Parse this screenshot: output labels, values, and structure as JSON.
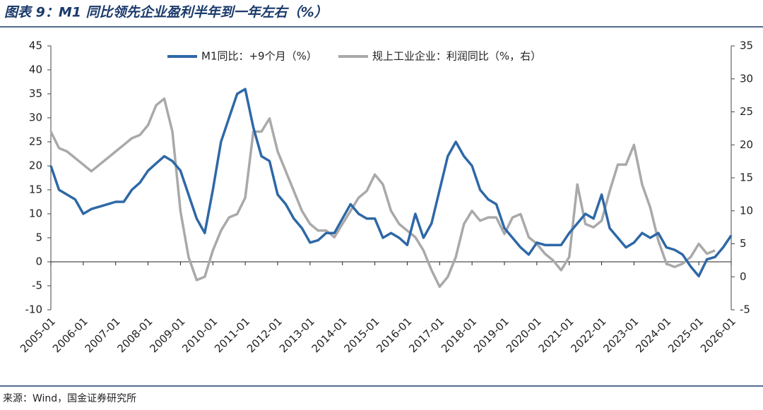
{
  "chart_data": {
    "type": "line",
    "title": "图表 9：M1 同比领先企业盈利半年到一年左右（%）",
    "source": "来源：Wind，国金证券研究所",
    "x": [
      "2005-01",
      "2005-04",
      "2005-07",
      "2005-10",
      "2006-01",
      "2006-04",
      "2006-07",
      "2006-10",
      "2007-01",
      "2007-04",
      "2007-07",
      "2007-10",
      "2008-01",
      "2008-04",
      "2008-07",
      "2008-10",
      "2009-01",
      "2009-04",
      "2009-07",
      "2009-10",
      "2010-01",
      "2010-04",
      "2010-07",
      "2010-10",
      "2011-01",
      "2011-04",
      "2011-07",
      "2011-10",
      "2012-01",
      "2012-04",
      "2012-07",
      "2012-10",
      "2013-01",
      "2013-04",
      "2013-07",
      "2013-10",
      "2014-01",
      "2014-04",
      "2014-07",
      "2014-10",
      "2015-01",
      "2015-04",
      "2015-07",
      "2015-10",
      "2016-01",
      "2016-04",
      "2016-07",
      "2016-10",
      "2017-01",
      "2017-04",
      "2017-07",
      "2017-10",
      "2018-01",
      "2018-04",
      "2018-07",
      "2018-10",
      "2019-01",
      "2019-04",
      "2019-07",
      "2019-10",
      "2020-01",
      "2020-04",
      "2020-07",
      "2020-10",
      "2021-01",
      "2021-04",
      "2021-07",
      "2021-10",
      "2022-01",
      "2022-04",
      "2022-07",
      "2022-10",
      "2023-01",
      "2023-04",
      "2023-07",
      "2023-10",
      "2024-01",
      "2024-04",
      "2024-07",
      "2024-10",
      "2025-01",
      "2025-04",
      "2025-07",
      "2025-10",
      "2026-01"
    ],
    "series": [
      {
        "name": "M1同比：+9个月（%）",
        "color": "#2e68a6",
        "axis": "y",
        "values": [
          20,
          15,
          14,
          13,
          10,
          11,
          11.5,
          12,
          12.5,
          12.5,
          15,
          16.5,
          19,
          20.5,
          22,
          21,
          19,
          14,
          9,
          6,
          15,
          25,
          30,
          35,
          36,
          28,
          22,
          21,
          14,
          12,
          9,
          7,
          4,
          4.5,
          6,
          6,
          9,
          12,
          10,
          9,
          9,
          5,
          6,
          5,
          3.5,
          10,
          5,
          8,
          15,
          22,
          25,
          22,
          20,
          15,
          13,
          12,
          7,
          5,
          3,
          1.5,
          4,
          3.5,
          3.5,
          3.5,
          6,
          8,
          10,
          9,
          14,
          7,
          5,
          3,
          4,
          6,
          5,
          6,
          3,
          2.5,
          1.5,
          -1,
          -3,
          0.5,
          1,
          3,
          5.5
        ]
      },
      {
        "name": "规上工业企业：利润同比（%，右）",
        "color": "#a9a9a9",
        "axis": "y2",
        "values": [
          22,
          19.5,
          19,
          18,
          17,
          16,
          17,
          18,
          19,
          20,
          21,
          21.5,
          23,
          26,
          27,
          22,
          10,
          3,
          -0.5,
          0,
          4,
          7,
          9,
          9.5,
          12,
          22,
          22,
          24,
          19,
          16,
          13,
          10,
          8,
          7,
          7,
          6,
          8,
          10,
          12,
          13,
          15.5,
          14,
          10,
          8,
          7,
          6,
          4,
          1,
          -1.5,
          0,
          3,
          8,
          10,
          8.5,
          9,
          9,
          6.5,
          9,
          9.5,
          6,
          5,
          3.5,
          2.5,
          1,
          3,
          14,
          8,
          7.5,
          8.5,
          13,
          17,
          17,
          20,
          14,
          10.5,
          5.5,
          2,
          1.5,
          2,
          3,
          5,
          3.5,
          4,
          null,
          null
        ]
      }
    ],
    "ylim": [
      -10,
      45
    ],
    "yticks": [
      -10,
      -5,
      0,
      5,
      10,
      15,
      20,
      25,
      30,
      35,
      40,
      45
    ],
    "y2lim": [
      -5,
      35
    ],
    "y2ticks": [
      -5,
      0,
      5,
      10,
      15,
      20,
      25,
      30,
      35
    ],
    "legend": "top"
  }
}
